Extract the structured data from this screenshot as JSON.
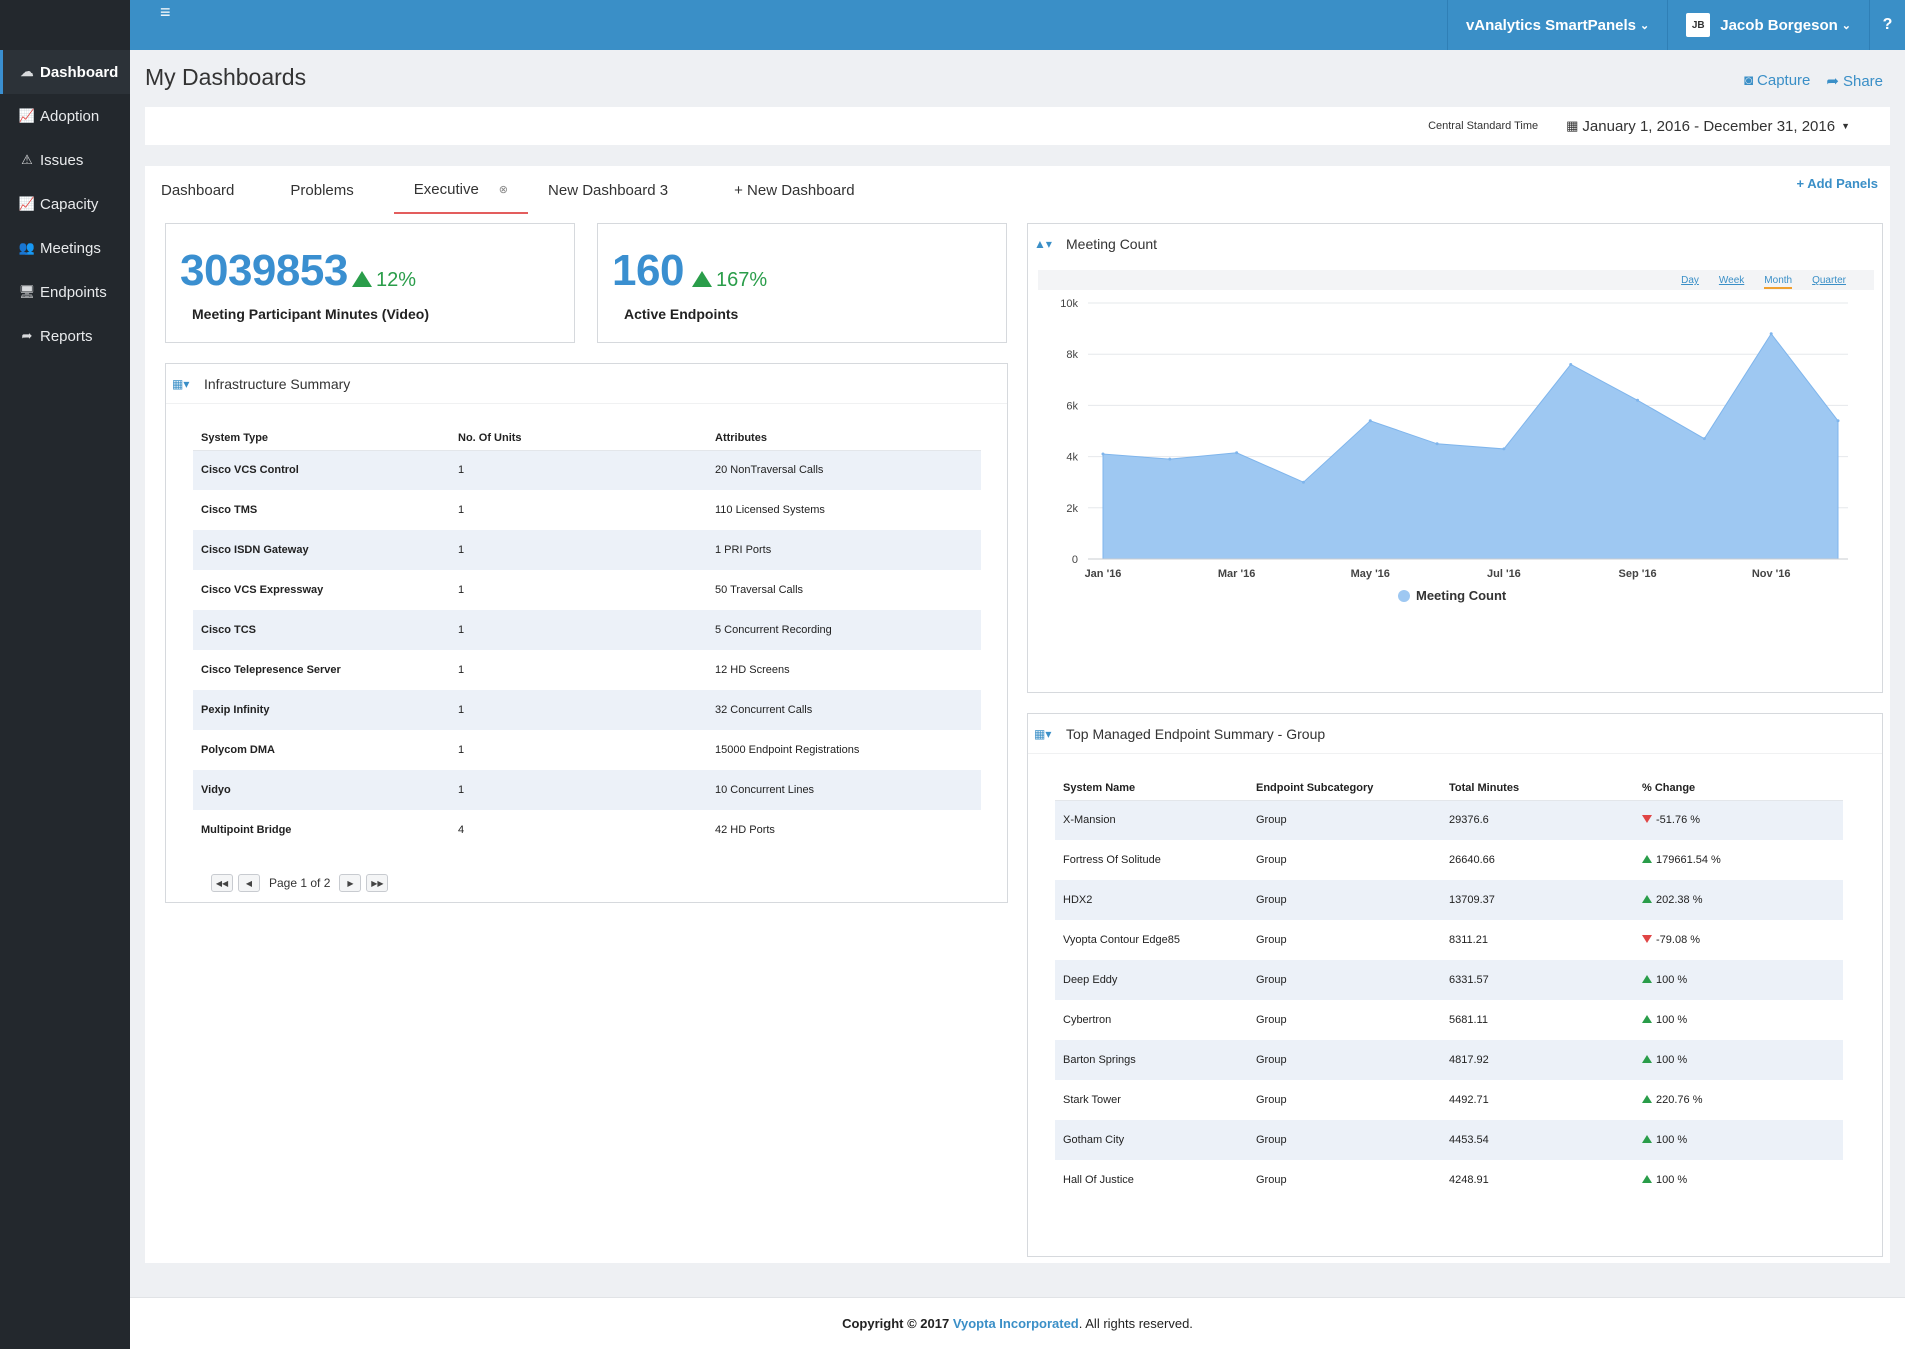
{
  "sidebar": {
    "items": [
      {
        "icon": "dashboard-icon",
        "glyph": "☁",
        "label": "Dashboard"
      },
      {
        "icon": "line-chart-icon",
        "glyph": "📈",
        "label": "Adoption"
      },
      {
        "icon": "warning-icon",
        "glyph": "⚠",
        "label": "Issues"
      },
      {
        "icon": "area-chart-icon",
        "glyph": "📈",
        "label": "Capacity"
      },
      {
        "icon": "people-icon",
        "glyph": "👥",
        "label": "Meetings"
      },
      {
        "icon": "desktop-icon",
        "glyph": "🖥",
        "label": "Endpoints"
      },
      {
        "icon": "share-arrow-icon",
        "glyph": "➦",
        "label": "Reports"
      }
    ]
  },
  "topbar": {
    "app_menu": "vAnalytics SmartPanels",
    "user_initials": "JB",
    "user_name": "Jacob Borgeson",
    "help": "?"
  },
  "page": {
    "title": "My Dashboards",
    "capture": "Capture",
    "share": "Share",
    "timezone": "Central Standard Time",
    "date_range": "January 1, 2016 - December 31, 2016"
  },
  "tabs": [
    {
      "label": "Dashboard"
    },
    {
      "label": "Problems"
    },
    {
      "label": "Executive"
    },
    {
      "label": "New Dashboard 3"
    },
    {
      "label": "+ New Dashboard"
    }
  ],
  "add_panels": "+ Add Panels",
  "kpis": [
    {
      "value": "3039853",
      "change": "12%",
      "label": "Meeting Participant Minutes (Video)"
    },
    {
      "value": "160",
      "change": "167%",
      "label": "Active Endpoints"
    }
  ],
  "infrastructure": {
    "title": "Infrastructure Summary",
    "columns": [
      "System Type",
      "No. Of Units",
      "Attributes"
    ],
    "rows": [
      [
        "Cisco VCS Control",
        "1",
        "20 NonTraversal Calls"
      ],
      [
        "Cisco TMS",
        "1",
        "110 Licensed Systems"
      ],
      [
        "Cisco ISDN Gateway",
        "1",
        "1 PRI Ports"
      ],
      [
        "Cisco VCS Expressway",
        "1",
        "50 Traversal Calls"
      ],
      [
        "Cisco TCS",
        "1",
        "5 Concurrent Recording"
      ],
      [
        "Cisco Telepresence Server",
        "1",
        "12 HD Screens"
      ],
      [
        "Pexip Infinity",
        "1",
        "32 Concurrent Calls"
      ],
      [
        "Polycom DMA",
        "1",
        "15000 Endpoint Registrations"
      ],
      [
        "Vidyo",
        "1",
        "10 Concurrent Lines"
      ],
      [
        "Multipoint Bridge",
        "4",
        "42 HD Ports"
      ]
    ],
    "pager_text": "Page 1 of 2"
  },
  "meeting_chart": {
    "title": "Meeting Count",
    "periods": [
      "Day",
      "Week",
      "Month",
      "Quarter"
    ],
    "selected_period": "Month",
    "color": "#9ec8f2"
  },
  "chart_data": {
    "type": "area",
    "x": [
      "Jan '16",
      "Feb '16",
      "Mar '16",
      "Apr '16",
      "May '16",
      "Jun '16",
      "Jul '16",
      "Aug '16",
      "Sep '16",
      "Oct '16",
      "Nov '16",
      "Dec '16"
    ],
    "x_tick_labels": [
      "Jan '16",
      "Mar '16",
      "May '16",
      "Jul '16",
      "Sep '16",
      "Nov '16"
    ],
    "series": [
      {
        "name": "Meeting Count",
        "values": [
          4100,
          3900,
          4150,
          3000,
          5400,
          4500,
          4300,
          7600,
          6200,
          4700,
          8800,
          5400
        ]
      }
    ],
    "y_ticks": [
      "0",
      "2k",
      "4k",
      "6k",
      "8k",
      "10k"
    ],
    "ylim": [
      0,
      10000
    ],
    "grid": true,
    "legend": "bottom"
  },
  "endpoints": {
    "title": "Top Managed Endpoint Summary - Group",
    "columns": [
      "System Name",
      "Endpoint Subcategory",
      "Total Minutes",
      "% Change"
    ],
    "rows": [
      {
        "name": "X-Mansion",
        "sub": "Group",
        "minutes": "29376.6",
        "dir": "down",
        "change": "-51.76 %"
      },
      {
        "name": "Fortress Of Solitude",
        "sub": "Group",
        "minutes": "26640.66",
        "dir": "up",
        "change": "179661.54 %"
      },
      {
        "name": "HDX2",
        "sub": "Group",
        "minutes": "13709.37",
        "dir": "up",
        "change": "202.38 %"
      },
      {
        "name": "Vyopta Contour Edge85",
        "sub": "Group",
        "minutes": "8311.21",
        "dir": "down",
        "change": "-79.08 %"
      },
      {
        "name": "Deep Eddy",
        "sub": "Group",
        "minutes": "6331.57",
        "dir": "up",
        "change": "100 %"
      },
      {
        "name": "Cybertron",
        "sub": "Group",
        "minutes": "5681.11",
        "dir": "up",
        "change": "100 %"
      },
      {
        "name": "Barton Springs",
        "sub": "Group",
        "minutes": "4817.92",
        "dir": "up",
        "change": "100 %"
      },
      {
        "name": "Stark Tower",
        "sub": "Group",
        "minutes": "4492.71",
        "dir": "up",
        "change": "220.76 %"
      },
      {
        "name": "Gotham City",
        "sub": "Group",
        "minutes": "4453.54",
        "dir": "up",
        "change": "100 %"
      },
      {
        "name": "Hall Of Justice",
        "sub": "Group",
        "minutes": "4248.91",
        "dir": "up",
        "change": "100 %"
      }
    ]
  },
  "footer": {
    "prefix": "Copyright © 2017 ",
    "brand": "Vyopta Incorporated",
    "suffix": ". All rights reserved."
  },
  "colors": {
    "accent": "#3a8fc7",
    "positive": "#2a9d4a",
    "negative": "#e04545",
    "sidebar": "#23282d"
  }
}
